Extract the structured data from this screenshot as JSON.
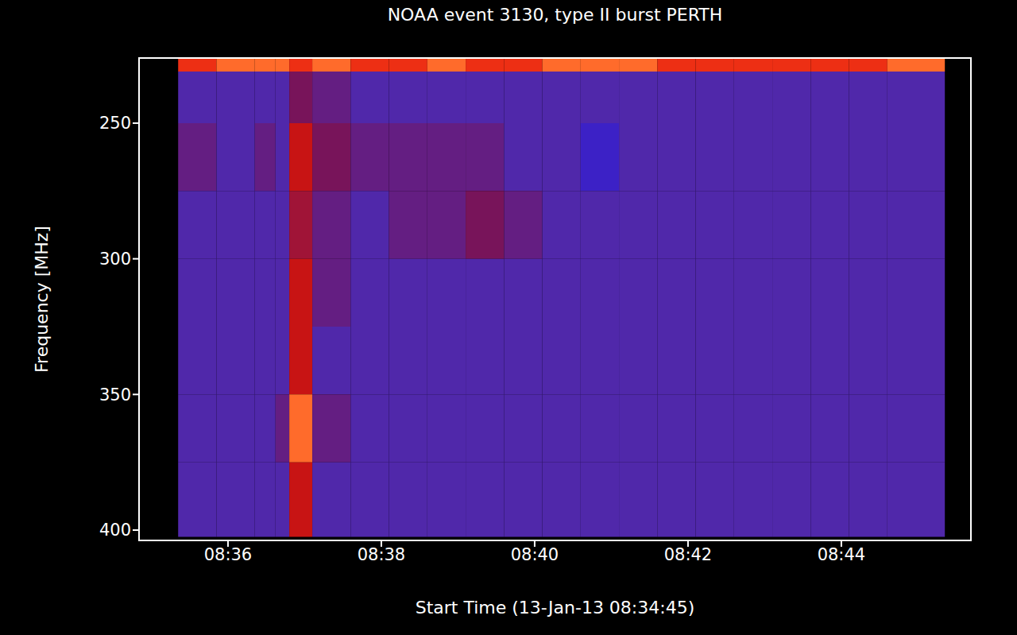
{
  "chart_data": {
    "type": "heatmap",
    "title": "NOAA event 3130, type II burst PERTH",
    "x_label": "Start Time (13-Jan-13 08:34:45)",
    "y_label": "Frequency [MHz]",
    "xlim": [
      34.84,
      45.69
    ],
    "ylim": [
      403.8,
      226
    ],
    "xticks": [
      {
        "value": 36,
        "label": "08:36"
      },
      {
        "value": 38,
        "label": "08:38"
      },
      {
        "value": 40,
        "label": "08:40"
      },
      {
        "value": 42,
        "label": "08:42"
      },
      {
        "value": 44,
        "label": "08:44"
      }
    ],
    "yticks": [
      250,
      300,
      350,
      400
    ],
    "x_edges": [
      35.35,
      35.85,
      36.35,
      36.62,
      36.8,
      37.1,
      37.6,
      38.1,
      38.6,
      39.1,
      39.6,
      40.1,
      40.6,
      41.1,
      41.6,
      42.1,
      42.6,
      43.1,
      43.6,
      44.1,
      44.6,
      45.35
    ],
    "y_edges": [
      226,
      231,
      250,
      275,
      300,
      325,
      350,
      375,
      402.5
    ],
    "zlim": [
      0,
      10
    ],
    "values": [
      [
        8,
        9,
        9,
        9,
        8,
        9,
        8,
        8,
        9,
        8,
        8,
        9,
        9,
        9,
        8,
        8,
        8,
        8,
        8,
        8,
        9
      ],
      [
        3,
        3,
        3,
        3,
        5,
        4,
        3,
        3,
        3,
        3,
        3,
        3,
        3,
        3,
        3,
        3,
        3,
        3,
        3,
        3,
        3
      ],
      [
        4,
        3,
        4,
        3,
        7,
        5,
        4,
        4,
        4,
        4,
        3,
        3,
        2,
        3,
        3,
        3,
        3,
        3,
        3,
        3,
        3
      ],
      [
        3,
        3,
        3,
        3,
        6,
        4,
        3,
        4,
        4,
        5,
        4,
        3,
        3,
        3,
        3,
        3,
        3,
        3,
        3,
        3,
        3
      ],
      [
        3,
        3,
        3,
        3,
        7,
        4,
        3,
        3,
        3,
        3,
        3,
        3,
        3,
        3,
        3,
        3,
        3,
        3,
        3,
        3,
        3
      ],
      [
        3,
        3,
        3,
        3,
        7,
        3,
        3,
        3,
        3,
        3,
        3,
        3,
        3,
        3,
        3,
        3,
        3,
        3,
        3,
        3,
        3
      ],
      [
        3,
        3,
        3,
        4,
        9,
        4,
        3,
        3,
        3,
        3,
        3,
        3,
        3,
        3,
        3,
        3,
        3,
        3,
        3,
        3,
        3
      ],
      [
        3,
        3,
        3,
        3,
        7,
        3,
        3,
        3,
        3,
        3,
        3,
        3,
        3,
        3,
        3,
        3,
        3,
        3,
        3,
        3,
        3
      ]
    ],
    "grid": false
  }
}
